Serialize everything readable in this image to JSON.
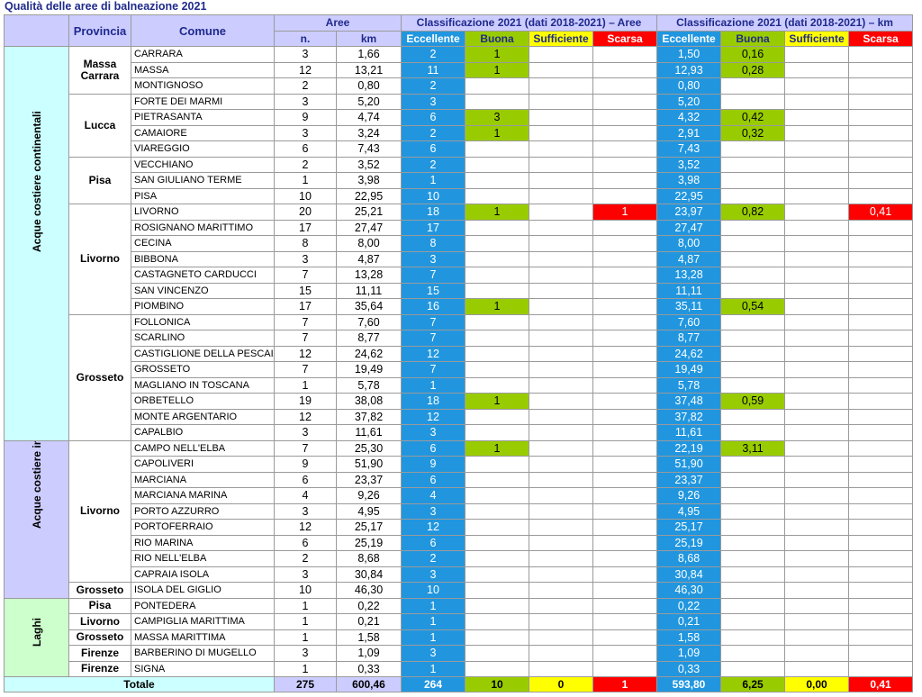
{
  "title": "Qualità delle aree di balneazione 2021",
  "colors": {
    "eccellente": "#2196df",
    "buona": "#99cc00",
    "sufficiente": "#ffff00",
    "scarsa": "#ff0000"
  },
  "headers": {
    "provincia": "Provincia",
    "comune": "Comune",
    "aree": "Aree",
    "n": "n.",
    "km": "km",
    "class_aree": "Classificazione 2021 (dati 2018-2021) – Aree",
    "class_km": "Classificazione 2021 (dati 2018-2021) – km",
    "classes": [
      "Eccellente",
      "Buona",
      "Sufficiente",
      "Scarsa"
    ]
  },
  "groups": [
    {
      "label": "Acque costiere continentali",
      "color": "#ccffff",
      "provinces": [
        {
          "name": "Massa Carrara",
          "rows": [
            [
              "CARRARA",
              "3",
              "1,66",
              "2",
              "1",
              "",
              "",
              "1,50",
              "0,16",
              "",
              ""
            ],
            [
              "MASSA",
              "12",
              "13,21",
              "11",
              "1",
              "",
              "",
              "12,93",
              "0,28",
              "",
              ""
            ],
            [
              "MONTIGNOSO",
              "2",
              "0,80",
              "2",
              "",
              "",
              "",
              "0,80",
              "",
              "",
              ""
            ]
          ]
        },
        {
          "name": "Lucca",
          "rows": [
            [
              "FORTE DEI MARMI",
              "3",
              "5,20",
              "3",
              "",
              "",
              "",
              "5,20",
              "",
              "",
              ""
            ],
            [
              "PIETRASANTA",
              "9",
              "4,74",
              "6",
              "3",
              "",
              "",
              "4,32",
              "0,42",
              "",
              ""
            ],
            [
              "CAMAIORE",
              "3",
              "3,24",
              "2",
              "1",
              "",
              "",
              "2,91",
              "0,32",
              "",
              ""
            ],
            [
              "VIAREGGIO",
              "6",
              "7,43",
              "6",
              "",
              "",
              "",
              "7,43",
              "",
              "",
              ""
            ]
          ]
        },
        {
          "name": "Pisa",
          "rows": [
            [
              "VECCHIANO",
              "2",
              "3,52",
              "2",
              "",
              "",
              "",
              "3,52",
              "",
              "",
              ""
            ],
            [
              "SAN GIULIANO TERME",
              "1",
              "3,98",
              "1",
              "",
              "",
              "",
              "3,98",
              "",
              "",
              ""
            ],
            [
              "PISA",
              "10",
              "22,95",
              "10",
              "",
              "",
              "",
              "22,95",
              "",
              "",
              ""
            ]
          ]
        },
        {
          "name": "Livorno",
          "rows": [
            [
              "LIVORNO",
              "20",
              "25,21",
              "18",
              "1",
              "",
              "1",
              "23,97",
              "0,82",
              "",
              "0,41"
            ],
            [
              "ROSIGNANO MARITTIMO",
              "17",
              "27,47",
              "17",
              "",
              "",
              "",
              "27,47",
              "",
              "",
              ""
            ],
            [
              "CECINA",
              "8",
              "8,00",
              "8",
              "",
              "",
              "",
              "8,00",
              "",
              "",
              ""
            ],
            [
              "BIBBONA",
              "3",
              "4,87",
              "3",
              "",
              "",
              "",
              "4,87",
              "",
              "",
              ""
            ],
            [
              "CASTAGNETO CARDUCCI",
              "7",
              "13,28",
              "7",
              "",
              "",
              "",
              "13,28",
              "",
              "",
              ""
            ],
            [
              "SAN VINCENZO",
              "15",
              "11,11",
              "15",
              "",
              "",
              "",
              "11,11",
              "",
              "",
              ""
            ],
            [
              "PIOMBINO",
              "17",
              "35,64",
              "16",
              "1",
              "",
              "",
              "35,11",
              "0,54",
              "",
              ""
            ]
          ]
        },
        {
          "name": "Grosseto",
          "rows": [
            [
              "FOLLONICA",
              "7",
              "7,60",
              "7",
              "",
              "",
              "",
              "7,60",
              "",
              "",
              ""
            ],
            [
              "SCARLINO",
              "7",
              "8,77",
              "7",
              "",
              "",
              "",
              "8,77",
              "",
              "",
              ""
            ],
            [
              "CASTIGLIONE DELLA PESCAIA",
              "12",
              "24,62",
              "12",
              "",
              "",
              "",
              "24,62",
              "",
              "",
              ""
            ],
            [
              "GROSSETO",
              "7",
              "19,49",
              "7",
              "",
              "",
              "",
              "19,49",
              "",
              "",
              ""
            ],
            [
              "MAGLIANO IN TOSCANA",
              "1",
              "5,78",
              "1",
              "",
              "",
              "",
              "5,78",
              "",
              "",
              ""
            ],
            [
              "ORBETELLO",
              "19",
              "38,08",
              "18",
              "1",
              "",
              "",
              "37,48",
              "0,59",
              "",
              ""
            ],
            [
              "MONTE ARGENTARIO",
              "12",
              "37,82",
              "12",
              "",
              "",
              "",
              "37,82",
              "",
              "",
              ""
            ],
            [
              "CAPALBIO",
              "3",
              "11,61",
              "3",
              "",
              "",
              "",
              "11,61",
              "",
              "",
              ""
            ]
          ]
        }
      ]
    },
    {
      "label": "Acque costiere insulari",
      "color": "#ccccff",
      "provinces": [
        {
          "name": "Livorno",
          "rows": [
            [
              "CAMPO NELL'ELBA",
              "7",
              "25,30",
              "6",
              "1",
              "",
              "",
              "22,19",
              "3,11",
              "",
              ""
            ],
            [
              "CAPOLIVERI",
              "9",
              "51,90",
              "9",
              "",
              "",
              "",
              "51,90",
              "",
              "",
              ""
            ],
            [
              "MARCIANA",
              "6",
              "23,37",
              "6",
              "",
              "",
              "",
              "23,37",
              "",
              "",
              ""
            ],
            [
              "MARCIANA MARINA",
              "4",
              "9,26",
              "4",
              "",
              "",
              "",
              "9,26",
              "",
              "",
              ""
            ],
            [
              "PORTO AZZURRO",
              "3",
              "4,95",
              "3",
              "",
              "",
              "",
              "4,95",
              "",
              "",
              ""
            ],
            [
              "PORTOFERRAIO",
              "12",
              "25,17",
              "12",
              "",
              "",
              "",
              "25,17",
              "",
              "",
              ""
            ],
            [
              "RIO MARINA",
              "6",
              "25,19",
              "6",
              "",
              "",
              "",
              "25,19",
              "",
              "",
              ""
            ],
            [
              "RIO NELL'ELBA",
              "2",
              "8,68",
              "2",
              "",
              "",
              "",
              "8,68",
              "",
              "",
              ""
            ],
            [
              "CAPRAIA ISOLA",
              "3",
              "30,84",
              "3",
              "",
              "",
              "",
              "30,84",
              "",
              "",
              ""
            ]
          ]
        },
        {
          "name": "Grosseto",
          "rows": [
            [
              "ISOLA DEL GIGLIO",
              "10",
              "46,30",
              "10",
              "",
              "",
              "",
              "46,30",
              "",
              "",
              ""
            ]
          ]
        }
      ]
    },
    {
      "label": "Laghi",
      "color": "#ccffcc",
      "provinces": [
        {
          "name": "Pisa",
          "rows": [
            [
              "PONTEDERA",
              "1",
              "0,22",
              "1",
              "",
              "",
              "",
              "0,22",
              "",
              "",
              ""
            ]
          ]
        },
        {
          "name": "Livorno",
          "rows": [
            [
              "CAMPIGLIA MARITTIMA",
              "1",
              "0,21",
              "1",
              "",
              "",
              "",
              "0,21",
              "",
              "",
              ""
            ]
          ]
        },
        {
          "name": "Grosseto",
          "rows": [
            [
              "MASSA MARITTIMA",
              "1",
              "1,58",
              "1",
              "",
              "",
              "",
              "1,58",
              "",
              "",
              ""
            ]
          ]
        },
        {
          "name": "Firenze",
          "rows": [
            [
              "BARBERINO DI MUGELLO",
              "3",
              "1,09",
              "3",
              "",
              "",
              "",
              "1,09",
              "",
              "",
              ""
            ]
          ]
        },
        {
          "name": "Firenze",
          "rows": [
            [
              "SIGNA",
              "1",
              "0,33",
              "1",
              "",
              "",
              "",
              "0,33",
              "",
              "",
              ""
            ]
          ]
        }
      ]
    }
  ],
  "totale": {
    "label": "Totale",
    "values": [
      "275",
      "600,46",
      "264",
      "10",
      "0",
      "1",
      "593,80",
      "6,25",
      "0,00",
      "0,41"
    ]
  }
}
